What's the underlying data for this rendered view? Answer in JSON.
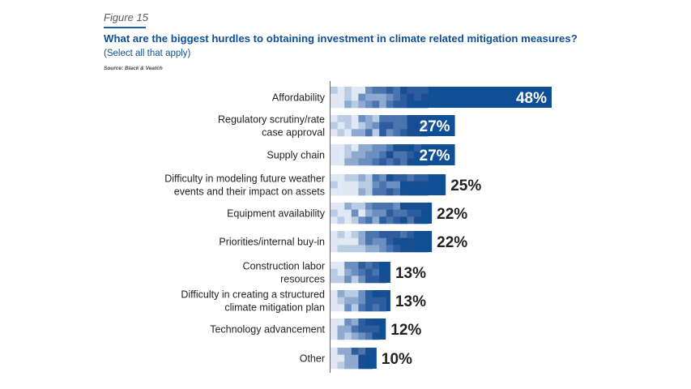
{
  "figure_label": "Figure 15",
  "title": "What are the biggest hurdles to obtaining investment in climate related mitigation measures?",
  "subtitle": "(Select all that apply)",
  "source": "Source: Black & Veatch",
  "colors": {
    "bar": "#0e4f96",
    "label_inside": "#ffffff",
    "label_outside": "#222222",
    "title": "#0e4f96"
  },
  "chart_data": {
    "type": "bar",
    "orientation": "horizontal",
    "categories": [
      "Affordability",
      "Regulatory scrutiny/rate case approval",
      "Supply chain",
      "Difficulty in modeling future weather events and their impact on assets",
      "Equipment availability",
      "Priorities/internal buy-in",
      "Construction labor resources",
      "Difficulty in creating a structured climate mitigation plan",
      "Technology advancement",
      "Other"
    ],
    "category_lines": [
      [
        "Affordability"
      ],
      [
        "Regulatory scrutiny/rate",
        "case approval"
      ],
      [
        "Supply chain"
      ],
      [
        "Difficulty in modeling future weather",
        "events and their impact on assets"
      ],
      [
        "Equipment availability"
      ],
      [
        "Priorities/internal buy-in"
      ],
      [
        "Construction labor",
        "resources"
      ],
      [
        "Difficulty in creating a structured",
        "climate mitigation plan"
      ],
      [
        "Technology advancement"
      ],
      [
        "Other"
      ]
    ],
    "values": [
      48,
      27,
      27,
      25,
      22,
      22,
      13,
      13,
      12,
      10
    ],
    "value_labels": [
      "48%",
      "27%",
      "27%",
      "25%",
      "22%",
      "22%",
      "13%",
      "13%",
      "12%",
      "10%"
    ],
    "label_inside": [
      true,
      true,
      true,
      false,
      false,
      false,
      false,
      false,
      false,
      false
    ],
    "xlim": [
      0,
      48
    ],
    "grid": false,
    "legend": "none"
  }
}
